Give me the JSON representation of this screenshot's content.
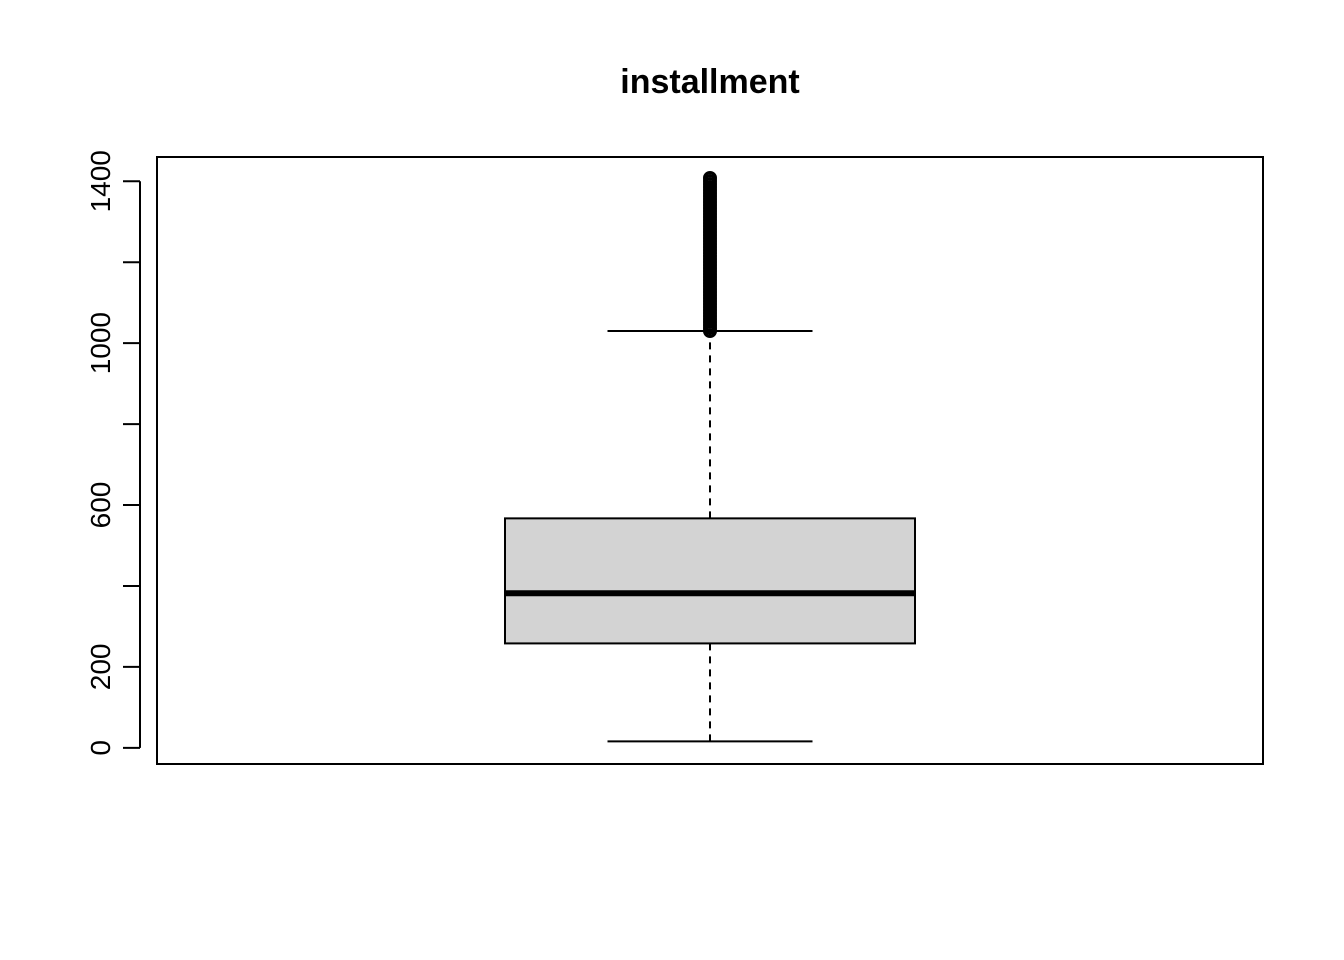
{
  "chart_data": {
    "type": "box",
    "title": "installment",
    "xlabel": "",
    "ylabel": "",
    "ylim": [
      -40,
      1460
    ],
    "yticks": [
      0,
      200,
      400,
      600,
      800,
      1000,
      1200,
      1400
    ],
    "ytick_labels": [
      "0",
      "200",
      "",
      "600",
      "",
      "1000",
      "",
      "1400"
    ],
    "grid": false,
    "legend": "none",
    "box": {
      "whisker_low": 16,
      "q1": 258,
      "median": 382,
      "q3": 567,
      "whisker_high": 1030,
      "outliers_min": 1030,
      "outliers_max": 1410
    },
    "colors": {
      "box_fill": "#d3d3d3",
      "line": "#000000"
    }
  }
}
